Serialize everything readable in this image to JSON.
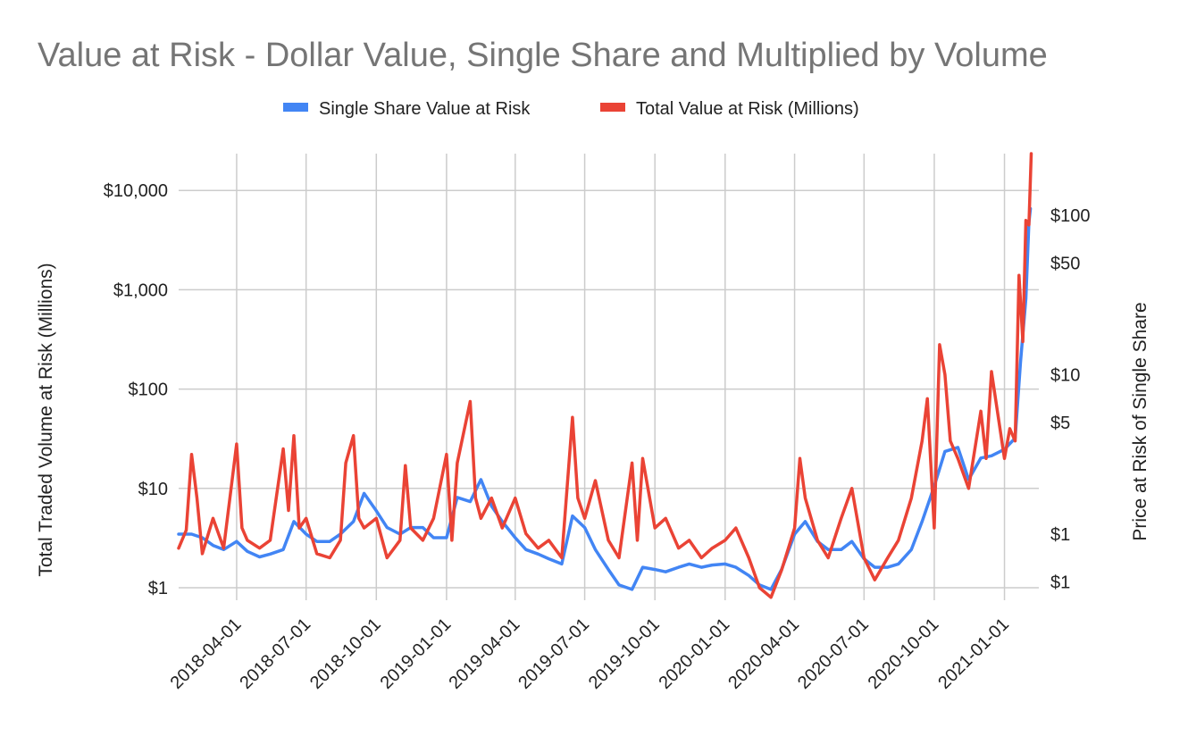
{
  "chart_data": {
    "type": "line",
    "title": "Value at Risk - Dollar Value, Single Share and Multiplied by Volume",
    "legend_position": "top",
    "grid": true,
    "x_axis": {
      "type": "date",
      "range": [
        "2018-01-15",
        "2021-02-15"
      ],
      "ticks": [
        "2018-04-01",
        "2018-07-01",
        "2018-10-01",
        "2019-01-01",
        "2019-04-01",
        "2019-07-01",
        "2019-10-01",
        "2020-01-01",
        "2020-04-01",
        "2020-07-01",
        "2020-10-01",
        "2021-01-01"
      ]
    },
    "y_left": {
      "label": "Total Traded Volume at Risk (Millions)",
      "scale": "log",
      "ticks": [
        {
          "value": 1,
          "label": "$1"
        },
        {
          "value": 10,
          "label": "$10"
        },
        {
          "value": 100,
          "label": "$100"
        },
        {
          "value": 1000,
          "label": "$1,000"
        },
        {
          "value": 10000,
          "label": "$10,000"
        }
      ]
    },
    "y_right": {
      "label": "Price at Risk of Single Share",
      "scale": "log",
      "ticks": [
        {
          "value": 0.5,
          "label": "$1"
        },
        {
          "value": 1,
          "label": "$1"
        },
        {
          "value": 5,
          "label": "$5"
        },
        {
          "value": 10,
          "label": "$10"
        },
        {
          "value": 50,
          "label": "$50"
        },
        {
          "value": 100,
          "label": "$100"
        }
      ]
    },
    "series": [
      {
        "name": "Single Share Value at Risk",
        "axis": "right",
        "color": "#4285f4",
        "points": [
          [
            "2018-01-15",
            1.0
          ],
          [
            "2018-02-01",
            1.0
          ],
          [
            "2018-02-15",
            0.95
          ],
          [
            "2018-03-01",
            0.85
          ],
          [
            "2018-03-15",
            0.8
          ],
          [
            "2018-04-01",
            0.9
          ],
          [
            "2018-04-15",
            0.78
          ],
          [
            "2018-05-01",
            0.72
          ],
          [
            "2018-05-15",
            0.75
          ],
          [
            "2018-06-01",
            0.8
          ],
          [
            "2018-06-15",
            1.2
          ],
          [
            "2018-07-01",
            1.0
          ],
          [
            "2018-07-15",
            0.9
          ],
          [
            "2018-08-01",
            0.9
          ],
          [
            "2018-08-15",
            1.0
          ],
          [
            "2018-09-01",
            1.2
          ],
          [
            "2018-09-15",
            1.8
          ],
          [
            "2018-10-01",
            1.4
          ],
          [
            "2018-10-15",
            1.1
          ],
          [
            "2018-11-01",
            1.0
          ],
          [
            "2018-11-15",
            1.1
          ],
          [
            "2018-12-01",
            1.1
          ],
          [
            "2018-12-15",
            0.95
          ],
          [
            "2019-01-01",
            0.95
          ],
          [
            "2019-01-15",
            1.7
          ],
          [
            "2019-02-01",
            1.6
          ],
          [
            "2019-02-15",
            2.2
          ],
          [
            "2019-03-01",
            1.5
          ],
          [
            "2019-03-15",
            1.2
          ],
          [
            "2019-04-01",
            0.95
          ],
          [
            "2019-04-15",
            0.8
          ],
          [
            "2019-05-01",
            0.75
          ],
          [
            "2019-05-15",
            0.7
          ],
          [
            "2019-06-01",
            0.65
          ],
          [
            "2019-06-15",
            1.3
          ],
          [
            "2019-07-01",
            1.1
          ],
          [
            "2019-07-15",
            0.8
          ],
          [
            "2019-08-01",
            0.6
          ],
          [
            "2019-08-15",
            0.48
          ],
          [
            "2019-09-01",
            0.45
          ],
          [
            "2019-09-15",
            0.62
          ],
          [
            "2019-10-01",
            0.6
          ],
          [
            "2019-10-15",
            0.58
          ],
          [
            "2019-11-01",
            0.62
          ],
          [
            "2019-11-15",
            0.65
          ],
          [
            "2019-12-01",
            0.62
          ],
          [
            "2019-12-15",
            0.64
          ],
          [
            "2020-01-01",
            0.65
          ],
          [
            "2020-01-15",
            0.62
          ],
          [
            "2020-02-01",
            0.55
          ],
          [
            "2020-02-15",
            0.48
          ],
          [
            "2020-03-01",
            0.45
          ],
          [
            "2020-03-15",
            0.6
          ],
          [
            "2020-04-01",
            1.0
          ],
          [
            "2020-04-15",
            1.2
          ],
          [
            "2020-05-01",
            0.9
          ],
          [
            "2020-05-15",
            0.8
          ],
          [
            "2020-06-01",
            0.8
          ],
          [
            "2020-06-15",
            0.9
          ],
          [
            "2020-07-01",
            0.7
          ],
          [
            "2020-07-15",
            0.62
          ],
          [
            "2020-08-01",
            0.62
          ],
          [
            "2020-08-15",
            0.65
          ],
          [
            "2020-09-01",
            0.8
          ],
          [
            "2020-09-15",
            1.2
          ],
          [
            "2020-10-01",
            2.0
          ],
          [
            "2020-10-15",
            3.3
          ],
          [
            "2020-11-01",
            3.5
          ],
          [
            "2020-11-15",
            2.2
          ],
          [
            "2020-12-01",
            3.0
          ],
          [
            "2020-12-15",
            3.1
          ],
          [
            "2021-01-01",
            3.4
          ],
          [
            "2021-01-15",
            4.0
          ],
          [
            "2021-01-22",
            12.0
          ],
          [
            "2021-01-29",
            30.0
          ],
          [
            "2021-02-02",
            90.0
          ],
          [
            "2021-02-04",
            110.0
          ]
        ]
      },
      {
        "name": "Total Value at Risk (Millions)",
        "axis": "left",
        "color": "#ea4335",
        "points": [
          [
            "2018-01-15",
            2.5
          ],
          [
            "2018-01-25",
            3.8
          ],
          [
            "2018-02-01",
            22
          ],
          [
            "2018-02-08",
            8
          ],
          [
            "2018-02-15",
            2.2
          ],
          [
            "2018-03-01",
            5
          ],
          [
            "2018-03-15",
            2.5
          ],
          [
            "2018-04-01",
            28
          ],
          [
            "2018-04-08",
            4
          ],
          [
            "2018-04-15",
            3
          ],
          [
            "2018-05-01",
            2.5
          ],
          [
            "2018-05-15",
            3
          ],
          [
            "2018-06-01",
            25
          ],
          [
            "2018-06-08",
            6
          ],
          [
            "2018-06-15",
            34
          ],
          [
            "2018-06-22",
            4
          ],
          [
            "2018-07-01",
            5
          ],
          [
            "2018-07-15",
            2.2
          ],
          [
            "2018-08-01",
            2
          ],
          [
            "2018-08-15",
            3
          ],
          [
            "2018-08-22",
            18
          ],
          [
            "2018-09-01",
            34
          ],
          [
            "2018-09-08",
            5
          ],
          [
            "2018-09-15",
            4
          ],
          [
            "2018-10-01",
            5
          ],
          [
            "2018-10-15",
            2
          ],
          [
            "2018-11-01",
            3
          ],
          [
            "2018-11-08",
            17
          ],
          [
            "2018-11-15",
            4
          ],
          [
            "2018-12-01",
            3
          ],
          [
            "2018-12-15",
            5
          ],
          [
            "2019-01-01",
            22
          ],
          [
            "2019-01-08",
            3
          ],
          [
            "2019-01-15",
            18
          ],
          [
            "2019-02-01",
            75
          ],
          [
            "2019-02-08",
            8
          ],
          [
            "2019-02-15",
            5
          ],
          [
            "2019-03-01",
            8
          ],
          [
            "2019-03-15",
            4
          ],
          [
            "2019-04-01",
            8
          ],
          [
            "2019-04-15",
            3.5
          ],
          [
            "2019-05-01",
            2.5
          ],
          [
            "2019-05-15",
            3
          ],
          [
            "2019-06-01",
            2
          ],
          [
            "2019-06-15",
            52
          ],
          [
            "2019-06-22",
            8
          ],
          [
            "2019-07-01",
            5
          ],
          [
            "2019-07-15",
            12
          ],
          [
            "2019-08-01",
            3
          ],
          [
            "2019-08-15",
            2
          ],
          [
            "2019-09-01",
            18
          ],
          [
            "2019-09-08",
            3
          ],
          [
            "2019-09-15",
            20
          ],
          [
            "2019-10-01",
            4
          ],
          [
            "2019-10-15",
            5
          ],
          [
            "2019-11-01",
            2.5
          ],
          [
            "2019-11-15",
            3
          ],
          [
            "2019-12-01",
            2
          ],
          [
            "2019-12-15",
            2.5
          ],
          [
            "2020-01-01",
            3
          ],
          [
            "2020-01-15",
            4
          ],
          [
            "2020-02-01",
            2
          ],
          [
            "2020-02-15",
            1
          ],
          [
            "2020-03-01",
            0.8
          ],
          [
            "2020-03-15",
            1.5
          ],
          [
            "2020-04-01",
            4
          ],
          [
            "2020-04-08",
            20
          ],
          [
            "2020-04-15",
            8
          ],
          [
            "2020-05-01",
            3
          ],
          [
            "2020-05-15",
            2
          ],
          [
            "2020-06-01",
            5
          ],
          [
            "2020-06-15",
            10
          ],
          [
            "2020-07-01",
            2
          ],
          [
            "2020-07-15",
            1.2
          ],
          [
            "2020-08-01",
            2
          ],
          [
            "2020-08-15",
            3
          ],
          [
            "2020-09-01",
            8
          ],
          [
            "2020-09-15",
            30
          ],
          [
            "2020-09-22",
            80
          ],
          [
            "2020-10-01",
            4
          ],
          [
            "2020-10-08",
            280
          ],
          [
            "2020-10-15",
            140
          ],
          [
            "2020-10-22",
            30
          ],
          [
            "2020-11-01",
            20
          ],
          [
            "2020-11-15",
            10
          ],
          [
            "2020-12-01",
            60
          ],
          [
            "2020-12-08",
            20
          ],
          [
            "2020-12-15",
            150
          ],
          [
            "2021-01-01",
            20
          ],
          [
            "2021-01-08",
            40
          ],
          [
            "2021-01-15",
            30
          ],
          [
            "2021-01-20",
            1400
          ],
          [
            "2021-01-25",
            300
          ],
          [
            "2021-01-29",
            5000
          ],
          [
            "2021-02-02",
            4500
          ],
          [
            "2021-02-05",
            25000
          ]
        ]
      }
    ]
  }
}
